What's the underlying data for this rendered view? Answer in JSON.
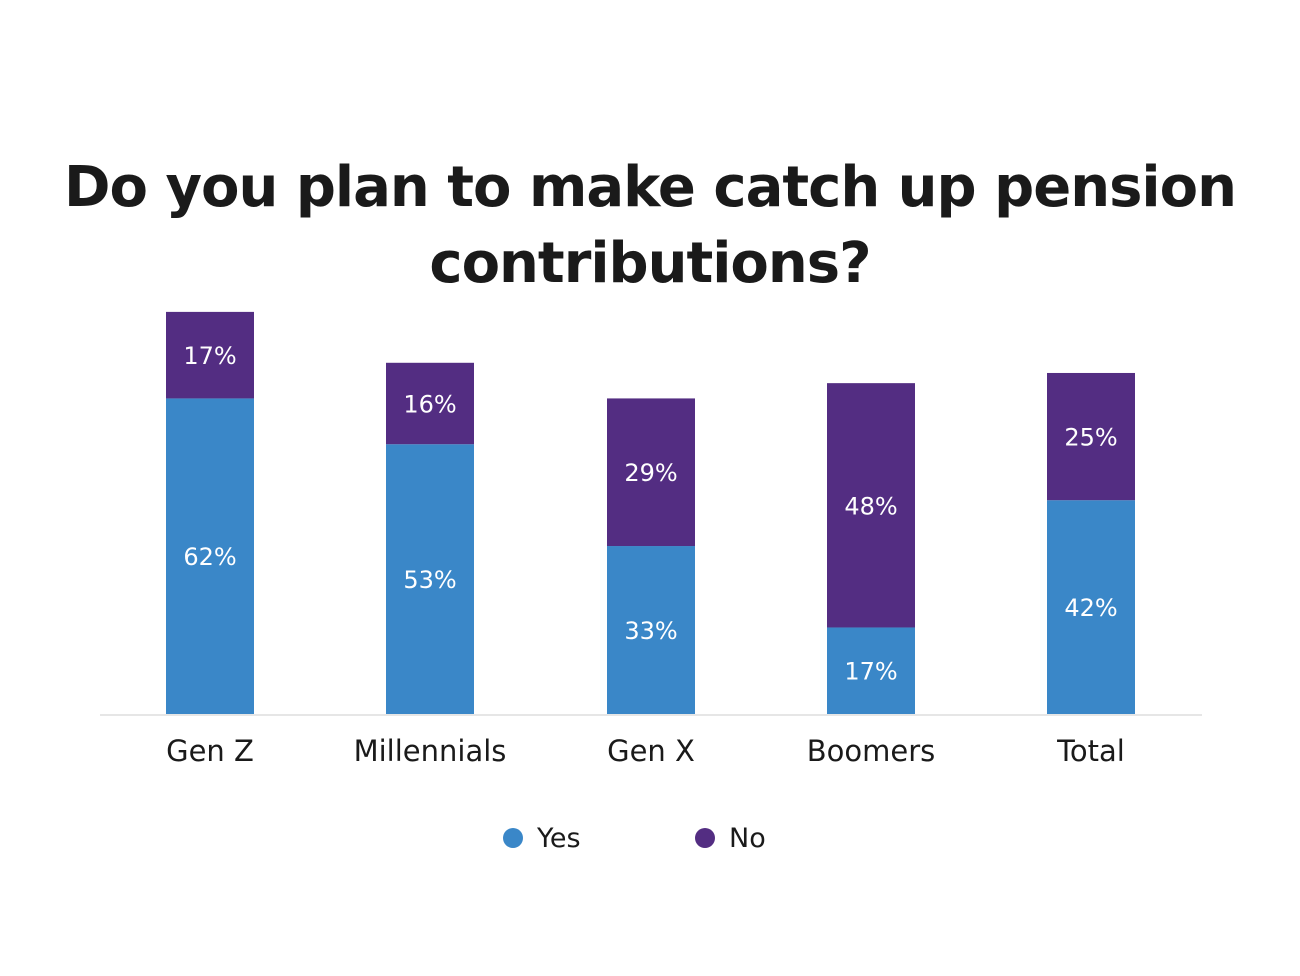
{
  "chart_data": {
    "type": "bar",
    "stacked": true,
    "title_lines": [
      "Do you plan to make catch up pension",
      "contributions?"
    ],
    "categories": [
      "Gen Z",
      "Millennials",
      "Gen X",
      "Boomers",
      "Total"
    ],
    "series": [
      {
        "name": "Yes",
        "color": "#3a87c8",
        "values": [
          62,
          53,
          33,
          17,
          42
        ],
        "labels": [
          "62%",
          "53%",
          "33%",
          "17%",
          "42%"
        ]
      },
      {
        "name": "No",
        "color": "#532d82",
        "values": [
          17,
          16,
          29,
          48,
          25
        ],
        "labels": [
          "17%",
          "16%",
          "29%",
          "48%",
          "25%"
        ]
      }
    ],
    "ylim": [
      0,
      100
    ],
    "grid": false,
    "legend_position": "bottom"
  }
}
